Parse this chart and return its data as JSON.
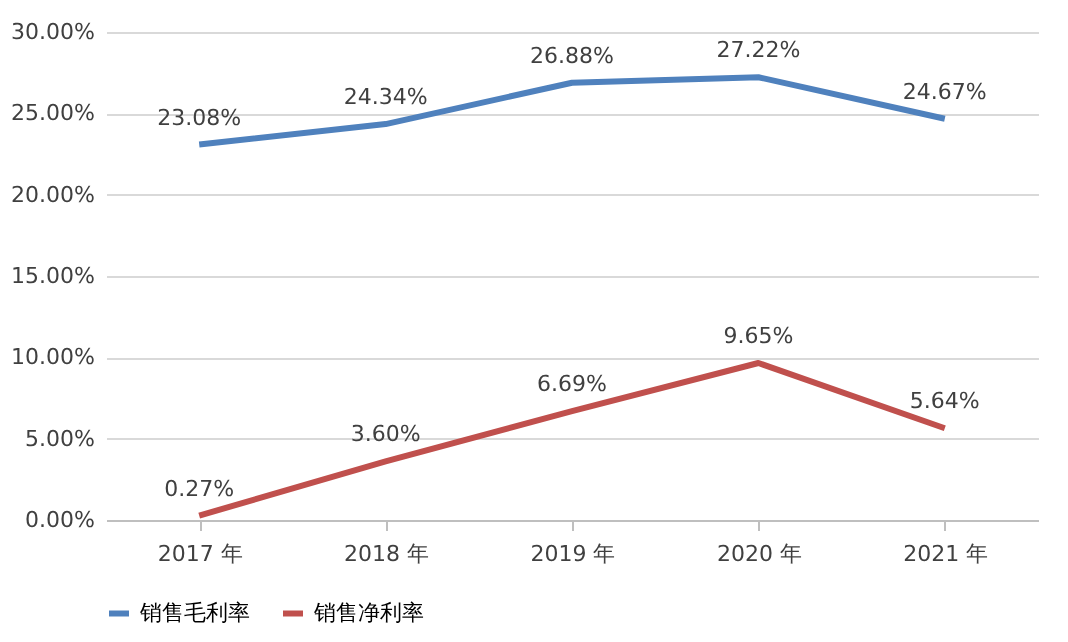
{
  "chart_data": {
    "type": "line",
    "categories": [
      "2017 年",
      "2018 年",
      "2019 年",
      "2020 年",
      "2021 年"
    ],
    "series": [
      {
        "name": "销售毛利率",
        "color": "#4f81bd",
        "values": [
          23.08,
          24.34,
          26.88,
          27.22,
          24.67
        ],
        "value_labels": [
          "23.08%",
          "24.34%",
          "26.88%",
          "27.22%",
          "24.67%"
        ]
      },
      {
        "name": "销售净利率",
        "color": "#c0504d",
        "values": [
          0.27,
          3.6,
          6.69,
          9.65,
          5.64
        ],
        "value_labels": [
          "0.27%",
          "3.60%",
          "6.69%",
          "9.65%",
          "5.64%"
        ]
      }
    ],
    "ylim": [
      0,
      30
    ],
    "yticks": [
      {
        "value": 0,
        "label": "0.00%"
      },
      {
        "value": 5,
        "label": "5.00%"
      },
      {
        "value": 10,
        "label": "10.00%"
      },
      {
        "value": 15,
        "label": "15.00%"
      },
      {
        "value": 20,
        "label": "20.00%"
      },
      {
        "value": 25,
        "label": "25.00%"
      },
      {
        "value": 30,
        "label": "30.00%"
      }
    ],
    "grid": "y",
    "legend": "bottom"
  }
}
